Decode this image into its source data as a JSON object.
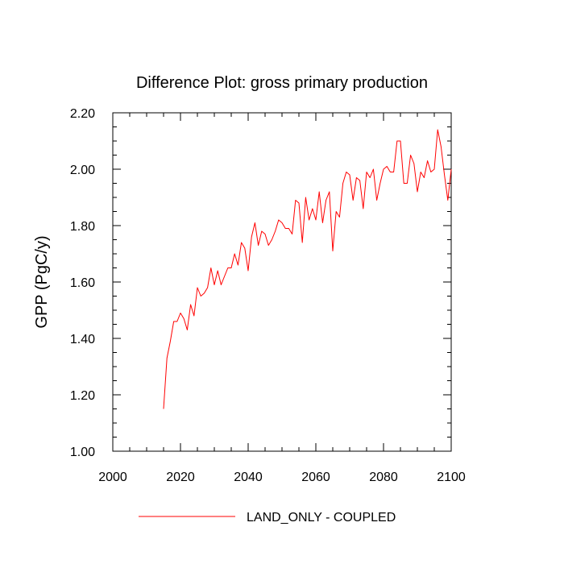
{
  "chart_data": {
    "type": "line",
    "title": "Difference Plot: gross primary production",
    "xlabel": "",
    "ylabel": "GPP  (PgC/y)",
    "xlim": [
      2000,
      2100
    ],
    "ylim": [
      1.0,
      2.2
    ],
    "x_ticks": [
      2000,
      2020,
      2040,
      2060,
      2080,
      2100
    ],
    "x_tick_labels": [
      "2000",
      "2020",
      "2040",
      "2060",
      "2080",
      "2100"
    ],
    "y_ticks": [
      1.0,
      1.2,
      1.4,
      1.6,
      1.8,
      2.0,
      2.2
    ],
    "y_tick_labels": [
      "1.00",
      "1.20",
      "1.40",
      "1.60",
      "1.80",
      "2.00",
      "2.20"
    ],
    "x_minor_step": 5,
    "y_minor_step": 0.05,
    "grid": false,
    "legend_position": "bottom-center",
    "series": [
      {
        "name": "LAND_ONLY - COUPLED",
        "color": "#ff0000",
        "x": [
          2015,
          2016,
          2017,
          2018,
          2019,
          2020,
          2021,
          2022,
          2023,
          2024,
          2025,
          2026,
          2027,
          2028,
          2029,
          2030,
          2031,
          2032,
          2033,
          2034,
          2035,
          2036,
          2037,
          2038,
          2039,
          2040,
          2041,
          2042,
          2043,
          2044,
          2045,
          2046,
          2047,
          2048,
          2049,
          2050,
          2051,
          2052,
          2053,
          2054,
          2055,
          2056,
          2057,
          2058,
          2059,
          2060,
          2061,
          2062,
          2063,
          2064,
          2065,
          2066,
          2067,
          2068,
          2069,
          2070,
          2071,
          2072,
          2073,
          2074,
          2075,
          2076,
          2077,
          2078,
          2079,
          2080,
          2081,
          2082,
          2083,
          2084,
          2085,
          2086,
          2087,
          2088,
          2089,
          2090,
          2091,
          2092,
          2093,
          2094,
          2095,
          2096,
          2097,
          2098,
          2099,
          2100
        ],
        "values": [
          1.15,
          1.33,
          1.39,
          1.46,
          1.46,
          1.49,
          1.47,
          1.43,
          1.52,
          1.48,
          1.58,
          1.55,
          1.56,
          1.58,
          1.65,
          1.59,
          1.64,
          1.59,
          1.62,
          1.65,
          1.65,
          1.7,
          1.66,
          1.74,
          1.72,
          1.64,
          1.76,
          1.81,
          1.73,
          1.78,
          1.77,
          1.73,
          1.75,
          1.78,
          1.82,
          1.81,
          1.79,
          1.79,
          1.77,
          1.89,
          1.88,
          1.74,
          1.9,
          1.82,
          1.86,
          1.82,
          1.92,
          1.81,
          1.89,
          1.92,
          1.71,
          1.85,
          1.83,
          1.95,
          1.99,
          1.98,
          1.89,
          1.97,
          1.96,
          1.86,
          1.99,
          1.97,
          2.0,
          1.89,
          1.95,
          2.0,
          2.01,
          1.99,
          1.99,
          2.1,
          2.1,
          1.95,
          1.95,
          2.05,
          2.02,
          1.92,
          1.99,
          1.97,
          2.03,
          1.99,
          2.0,
          2.14,
          2.08,
          1.98,
          1.89,
          2.0
        ]
      }
    ]
  }
}
